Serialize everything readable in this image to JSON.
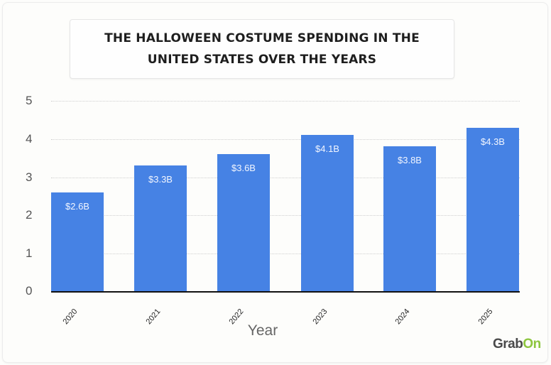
{
  "title": {
    "line1": "THE HALLOWEEN COSTUME SPENDING IN THE",
    "line2": "UNITED STATES OVER THE YEARS"
  },
  "chart_data": {
    "type": "bar",
    "title": "THE HALLOWEEN COSTUME SPENDING IN THE UNITED STATES OVER THE YEARS",
    "categories": [
      "2020",
      "2021",
      "2022",
      "2023",
      "2024",
      "2025"
    ],
    "values": [
      2.6,
      3.3,
      3.6,
      4.1,
      3.8,
      4.3
    ],
    "data_labels": [
      "$2.6B",
      "$3.3B",
      "$3.6B",
      "$4.1B",
      "$3.8B",
      "$4.3B"
    ],
    "xlabel": "Year",
    "ylabel": "",
    "ylim": [
      0,
      5
    ],
    "yticks": [
      "0",
      "1",
      "2",
      "3",
      "4",
      "5"
    ],
    "grid": true,
    "legend": null,
    "bar_color": "#4682e4"
  },
  "branding": {
    "logo_part1": "Grab",
    "logo_part2": "On"
  }
}
